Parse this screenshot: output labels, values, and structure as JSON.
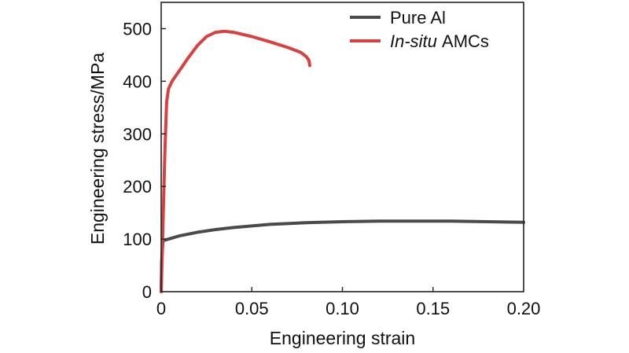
{
  "chart_data": {
    "type": "line",
    "title": "",
    "xlabel": "Engineering strain",
    "ylabel": "Engineering stress/MPa",
    "xlim": [
      0,
      0.2
    ],
    "ylim": [
      0,
      550
    ],
    "xticks": [
      0,
      0.05,
      0.1,
      0.15,
      0.2
    ],
    "xtick_labels": [
      "0",
      "0.05",
      "0.10",
      "0.15",
      "0.20"
    ],
    "yticks": [
      0,
      100,
      200,
      300,
      400,
      500
    ],
    "ytick_labels": [
      "0",
      "100",
      "200",
      "300",
      "400",
      "500"
    ],
    "grid": false,
    "legend_position": "top-right",
    "series": [
      {
        "name": "Pure Al",
        "name_italic": "",
        "name_rest": "Pure Al",
        "color": "#4a4a4a",
        "x": [
          0,
          0.0003,
          0.001,
          0.005,
          0.01,
          0.02,
          0.03,
          0.04,
          0.05,
          0.06,
          0.08,
          0.1,
          0.12,
          0.14,
          0.16,
          0.18,
          0.2
        ],
        "y": [
          0,
          60,
          97,
          101,
          106,
          113,
          118,
          122,
          125,
          128,
          131,
          133,
          134,
          134,
          134,
          133,
          132
        ]
      },
      {
        "name": "In-situ AMCs",
        "name_italic": "In-situ",
        "name_rest": " AMCs",
        "color": "#d94040",
        "x": [
          0,
          0.001,
          0.002,
          0.003,
          0.004,
          0.006,
          0.01,
          0.015,
          0.02,
          0.025,
          0.03,
          0.035,
          0.04,
          0.05,
          0.06,
          0.07,
          0.077,
          0.08,
          0.0815,
          0.082
        ],
        "y": [
          0,
          130,
          260,
          360,
          385,
          400,
          420,
          445,
          468,
          485,
          493,
          495,
          493,
          485,
          475,
          464,
          455,
          447,
          440,
          430
        ]
      }
    ]
  }
}
